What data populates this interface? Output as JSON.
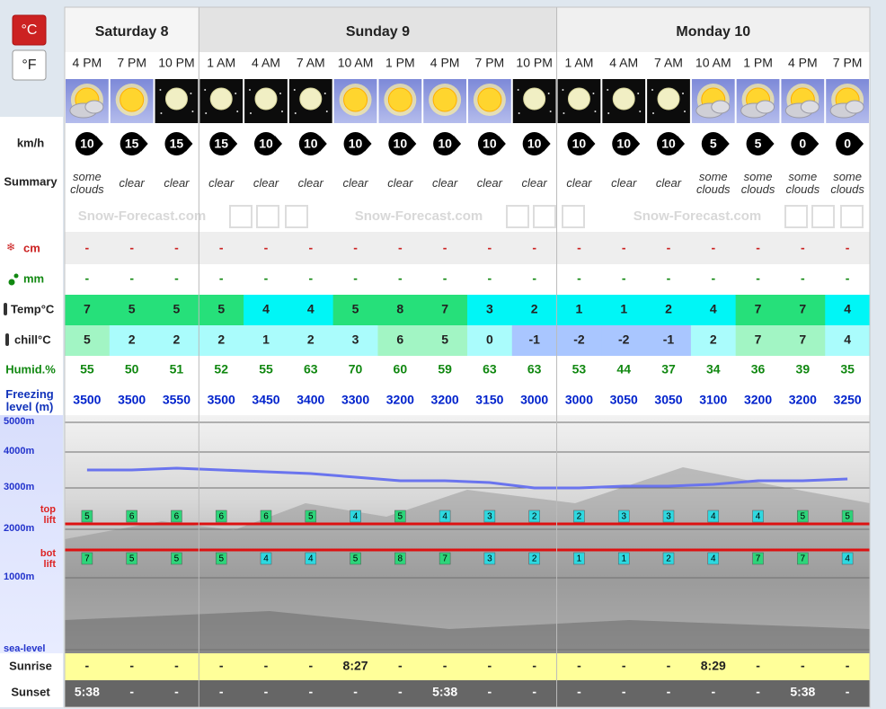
{
  "units": {
    "celsius": "°C",
    "fahrenheit": "°F"
  },
  "row_labels": {
    "wind": "km/h",
    "summary": "Summary",
    "snow": "cm",
    "rain": "mm",
    "temp": "Temp°C",
    "chill": "chill°C",
    "humidity": "Humid.%",
    "freezing": "Freezing level (m)",
    "sunrise": "Sunrise",
    "sunset": "Sunset"
  },
  "watermark": "Snow-Forecast.com",
  "chart": {
    "yticks": [
      {
        "value": 5000,
        "label": "5000m"
      },
      {
        "value": 4000,
        "label": "4000m"
      },
      {
        "value": 3000,
        "label": "3000m"
      },
      {
        "value": 2000,
        "label": "2000m"
      },
      {
        "value": 1000,
        "label": "1000m"
      },
      {
        "value": 0,
        "label": "sea-level"
      }
    ],
    "top_lift_label": "top lift",
    "bot_lift_label": "bot lift"
  },
  "days": [
    {
      "name": "Saturday 8",
      "periods": [
        {
          "time": "4 PM",
          "wind": 10,
          "summary": "some clouds",
          "snow": "-",
          "rain": "-",
          "temp": 7,
          "chill": 5,
          "humidity": 55,
          "freezing": 3500,
          "top_lift": 5,
          "bot_lift": 7,
          "sunrise": "-",
          "sunset": "5:38"
        },
        {
          "time": "7 PM",
          "wind": 15,
          "summary": "clear",
          "snow": "-",
          "rain": "-",
          "temp": 5,
          "chill": 2,
          "humidity": 50,
          "freezing": 3500,
          "top_lift": 6,
          "bot_lift": 5,
          "sunrise": "-",
          "sunset": "-"
        },
        {
          "time": "10 PM",
          "wind": 15,
          "summary": "clear",
          "snow": "-",
          "rain": "-",
          "temp": 5,
          "chill": 2,
          "humidity": 51,
          "freezing": 3550,
          "top_lift": 6,
          "bot_lift": 5,
          "sunrise": "-",
          "sunset": "-"
        }
      ]
    },
    {
      "name": "Sunday 9",
      "periods": [
        {
          "time": "1 AM",
          "wind": 15,
          "summary": "clear",
          "snow": "-",
          "rain": "-",
          "temp": 5,
          "chill": 2,
          "humidity": 52,
          "freezing": 3500,
          "top_lift": 6,
          "bot_lift": 5,
          "sunrise": "-",
          "sunset": "-"
        },
        {
          "time": "4 AM",
          "wind": 10,
          "summary": "clear",
          "snow": "-",
          "rain": "-",
          "temp": 4,
          "chill": 1,
          "humidity": 55,
          "freezing": 3450,
          "top_lift": 6,
          "bot_lift": 4,
          "sunrise": "-",
          "sunset": "-"
        },
        {
          "time": "7 AM",
          "wind": 10,
          "summary": "clear",
          "snow": "-",
          "rain": "-",
          "temp": 4,
          "chill": 2,
          "humidity": 63,
          "freezing": 3400,
          "top_lift": 5,
          "bot_lift": 4,
          "sunrise": "-",
          "sunset": "-"
        },
        {
          "time": "10 AM",
          "wind": 10,
          "summary": "clear",
          "snow": "-",
          "rain": "-",
          "temp": 5,
          "chill": 3,
          "humidity": 70,
          "freezing": 3300,
          "top_lift": 4,
          "bot_lift": 5,
          "sunrise": "8:27",
          "sunset": "-"
        },
        {
          "time": "1 PM",
          "wind": 10,
          "summary": "clear",
          "snow": "-",
          "rain": "-",
          "temp": 8,
          "chill": 6,
          "humidity": 60,
          "freezing": 3200,
          "top_lift": 5,
          "bot_lift": 8,
          "sunrise": "-",
          "sunset": "-"
        },
        {
          "time": "4 PM",
          "wind": 10,
          "summary": "clear",
          "snow": "-",
          "rain": "-",
          "temp": 7,
          "chill": 5,
          "humidity": 59,
          "freezing": 3200,
          "top_lift": 4,
          "bot_lift": 7,
          "sunrise": "-",
          "sunset": "5:38"
        },
        {
          "time": "7 PM",
          "wind": 10,
          "summary": "clear",
          "snow": "-",
          "rain": "-",
          "temp": 3,
          "chill": 0,
          "humidity": 63,
          "freezing": 3150,
          "top_lift": 3,
          "bot_lift": 3,
          "sunrise": "-",
          "sunset": "-"
        },
        {
          "time": "10 PM",
          "wind": 10,
          "summary": "clear",
          "snow": "-",
          "rain": "-",
          "temp": 2,
          "chill": -1,
          "humidity": 63,
          "freezing": 3000,
          "top_lift": 2,
          "bot_lift": 2,
          "sunrise": "-",
          "sunset": "-"
        }
      ]
    },
    {
      "name": "Monday 10",
      "periods": [
        {
          "time": "1 AM",
          "wind": 10,
          "summary": "clear",
          "snow": "-",
          "rain": "-",
          "temp": 1,
          "chill": -2,
          "humidity": 53,
          "freezing": 3000,
          "top_lift": 2,
          "bot_lift": 1,
          "sunrise": "-",
          "sunset": "-"
        },
        {
          "time": "4 AM",
          "wind": 10,
          "summary": "clear",
          "snow": "-",
          "rain": "-",
          "temp": 1,
          "chill": -2,
          "humidity": 44,
          "freezing": 3050,
          "top_lift": 3,
          "bot_lift": 1,
          "sunrise": "-",
          "sunset": "-"
        },
        {
          "time": "7 AM",
          "wind": 10,
          "summary": "clear",
          "snow": "-",
          "rain": "-",
          "temp": 2,
          "chill": -1,
          "humidity": 37,
          "freezing": 3050,
          "top_lift": 3,
          "bot_lift": 2,
          "sunrise": "-",
          "sunset": "-"
        },
        {
          "time": "10 AM",
          "wind": 5,
          "summary": "some clouds",
          "snow": "-",
          "rain": "-",
          "temp": 4,
          "chill": 2,
          "humidity": 34,
          "freezing": 3100,
          "top_lift": 4,
          "bot_lift": 4,
          "sunrise": "8:29",
          "sunset": "-"
        },
        {
          "time": "1 PM",
          "wind": 5,
          "summary": "some clouds",
          "snow": "-",
          "rain": "-",
          "temp": 7,
          "chill": 7,
          "humidity": 36,
          "freezing": 3200,
          "top_lift": 4,
          "bot_lift": 7,
          "sunrise": "-",
          "sunset": "-"
        },
        {
          "time": "4 PM",
          "wind": 0,
          "summary": "some clouds",
          "snow": "-",
          "rain": "-",
          "temp": 7,
          "chill": 7,
          "humidity": 39,
          "freezing": 3200,
          "top_lift": 5,
          "bot_lift": 7,
          "sunrise": "-",
          "sunset": "5:38"
        },
        {
          "time": "7 PM",
          "wind": 0,
          "summary": "some clouds",
          "snow": "-",
          "rain": "-",
          "temp": 4,
          "chill": 4,
          "humidity": 35,
          "freezing": 3250,
          "top_lift": 5,
          "bot_lift": 4,
          "sunrise": "-",
          "sunset": "-"
        }
      ]
    }
  ]
}
